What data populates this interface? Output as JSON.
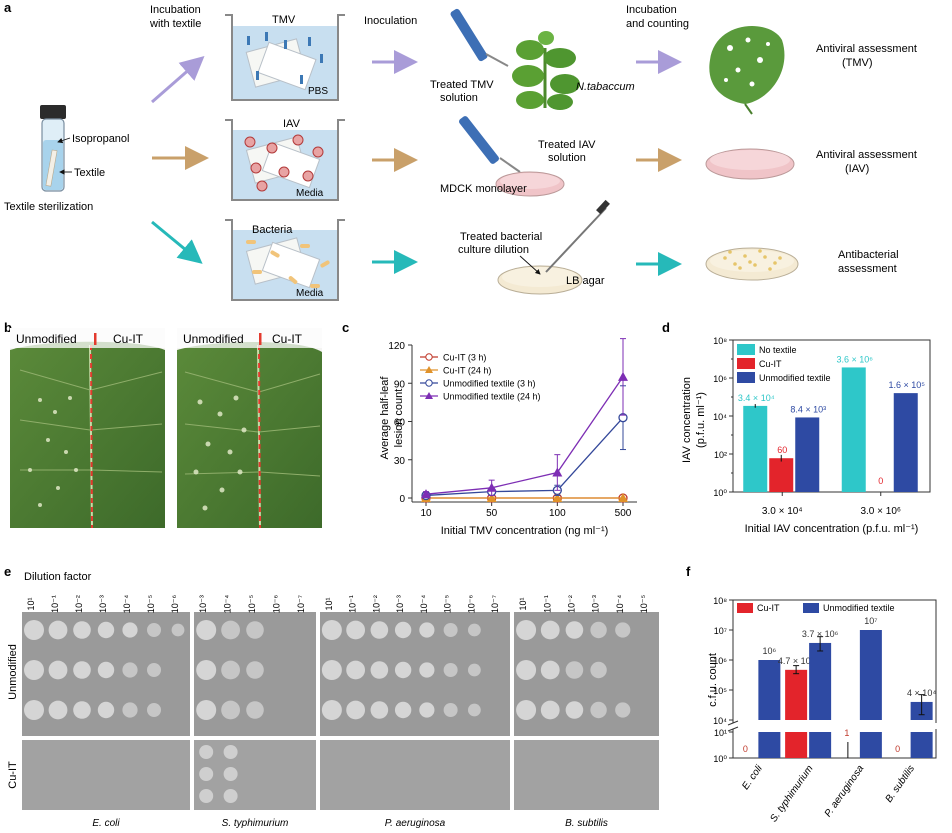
{
  "panel_labels": {
    "a": "a",
    "b": "b",
    "c": "c",
    "d": "d",
    "e": "e",
    "f": "f"
  },
  "panel_a": {
    "textile_sterilization": "Textile sterilization",
    "isopropanol": "Isopropanol",
    "textile": "Textile",
    "incubation_with_textile": [
      "Incubation",
      "with textile"
    ],
    "inoculation": "Inoculation",
    "incubation_counting": [
      "Incubation",
      "and counting"
    ],
    "tmv": "TMV",
    "pbs": "PBS",
    "iav": "IAV",
    "media": "Media",
    "bacteria": "Bacteria",
    "treated_tmv": [
      "Treated TMV",
      "solution"
    ],
    "n_tabacum": "N.tabaccum",
    "treated_iav": [
      "Treated IAV",
      "solution"
    ],
    "mdck": "MDCK monolayer",
    "treated_bact": [
      "Treated bacterial",
      "culture dilution"
    ],
    "lb_agar": "LB agar",
    "out_tmv": [
      "Antiviral assessment",
      "(TMV)"
    ],
    "out_iav": [
      "Antiviral assessment",
      "(IAV)"
    ],
    "out_bact": [
      "Antibacterial",
      "assessment"
    ],
    "colors": {
      "tmv": "#a99cd8",
      "iav": "#c9a06a",
      "bact": "#26b9b9"
    }
  },
  "panel_b": {
    "unmodified": "Unmodified",
    "cu_it": "Cu-IT"
  },
  "panel_e": {
    "dilution_factor": "Dilution factor",
    "row_unmodified": "Unmodified",
    "row_cuit": "Cu-IT",
    "organisms": [
      "E. coli",
      "S. typhimurium",
      "P. aeruginosa",
      "B. subtilis"
    ],
    "dilutions": [
      [
        "1",
        "−1",
        "−2",
        "−3",
        "−4",
        "−5",
        "−6"
      ],
      [
        "−3",
        "−4",
        "−5",
        "−6",
        "−7"
      ],
      [
        "1",
        "−1",
        "−2",
        "−3",
        "−4",
        "−5",
        "−6",
        "−7"
      ],
      [
        "1",
        "−1",
        "−2",
        "−3",
        "−4",
        "−5"
      ]
    ]
  },
  "chart_data": [
    {
      "panel": "c",
      "type": "line",
      "xlabel": "Initial TMV concentration (ng ml⁻¹)",
      "ylabel": [
        "Average half-leaf",
        "lesion count"
      ],
      "categories": [
        "10",
        "50",
        "100",
        "500"
      ],
      "ylim": [
        0,
        120
      ],
      "yticks": [
        "0",
        "30",
        "60",
        "90",
        "120"
      ],
      "series": [
        {
          "name": "Cu-IT (3 h)",
          "color": "#c0392b",
          "marker": "circle-open",
          "values": [
            0,
            0,
            0,
            0
          ]
        },
        {
          "name": "Cu-IT (24 h)",
          "color": "#e0922a",
          "marker": "triangle",
          "values": [
            0,
            0,
            0,
            0
          ]
        },
        {
          "name": "Unmodified textile (3 h)",
          "color": "#34489a",
          "marker": "circle-open",
          "values": [
            2,
            5,
            6,
            63
          ],
          "err": [
            1.5,
            3,
            4,
            25
          ]
        },
        {
          "name": "Unmodified textile (24 h)",
          "color": "#7d2eb4",
          "marker": "triangle",
          "values": [
            3,
            8,
            20,
            95
          ],
          "err": [
            2,
            6,
            14,
            30
          ]
        }
      ]
    },
    {
      "panel": "d",
      "type": "bar",
      "scale": "log",
      "ylabel": [
        "IAV concentration",
        "(p.f.u. ml⁻¹)"
      ],
      "xlabel": "Initial IAV concentration (p.f.u. ml⁻¹)",
      "categories": [
        "3.0 × 10⁴",
        "3.0 × 10⁶"
      ],
      "ylim": [
        1,
        100000000
      ],
      "yticks": [
        "10⁰",
        "10²",
        "10⁴",
        "10⁶",
        "10⁸"
      ],
      "series": [
        {
          "name": "No textile",
          "color": "#2ec7c9",
          "values": [
            34000,
            3600000
          ],
          "labels": [
            "3.4 × 10⁴",
            "3.6 × 10⁶"
          ]
        },
        {
          "name": "Cu-IT",
          "color": "#e3242b",
          "values": [
            60,
            0
          ],
          "labels": [
            "60",
            "0"
          ]
        },
        {
          "name": "Unmodified textile",
          "color": "#2e4aa3",
          "values": [
            8400,
            160000
          ],
          "labels": [
            "8.4 × 10³",
            "1.6 × 10⁵"
          ]
        }
      ]
    },
    {
      "panel": "f",
      "type": "bar",
      "scale": "log-broken",
      "ylabel": "c.f.u. count",
      "categories": [
        "E. coli",
        "S. typhimurium",
        "P. aeruginosa",
        "B. subtilis"
      ],
      "yticks_low": [
        "10⁰",
        "10¹"
      ],
      "yticks_high": [
        "10⁴",
        "10⁵",
        "10⁶",
        "10⁷",
        "10⁸"
      ],
      "series": [
        {
          "name": "Cu-IT",
          "color": "#e3242b",
          "values": [
            0,
            470000,
            1,
            0
          ],
          "labels": [
            "0",
            "4.7 × 10⁵",
            "1",
            "0"
          ]
        },
        {
          "name": "Unmodified textile",
          "color": "#2e4aa3",
          "values": [
            1000000,
            3700000,
            10000000,
            40000
          ],
          "labels": [
            "10⁶",
            "3.7 × 10⁶",
            "10⁷",
            "4 × 10⁴"
          ]
        }
      ]
    }
  ]
}
